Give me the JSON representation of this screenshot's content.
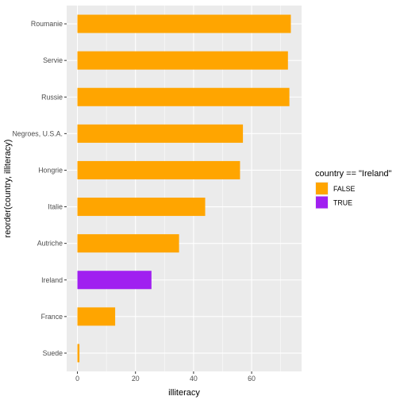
{
  "chart_data": {
    "type": "bar",
    "orientation": "horizontal",
    "categories": [
      "Suede",
      "France",
      "Ireland",
      "Autriche",
      "Italie",
      "Hongrie",
      "Negroes, U.S.A.",
      "Russie",
      "Servie",
      "Roumanie"
    ],
    "values": [
      0.7,
      13,
      25.5,
      35,
      44,
      56,
      57,
      73,
      72.5,
      73.5
    ],
    "highlight": [
      false,
      false,
      true,
      false,
      false,
      false,
      false,
      false,
      false,
      false
    ],
    "xlabel": "illiteracy",
    "ylabel": "reorder(country, illiteracy)",
    "xticks": [
      0,
      20,
      40,
      60
    ],
    "xlim": [
      -3.7,
      77.2
    ],
    "grid": true,
    "legend": {
      "title": "country == \"Ireland\"",
      "position": "right",
      "entries": [
        {
          "label": "FALSE",
          "color": "#FFA500"
        },
        {
          "label": "TRUE",
          "color": "#A020F0"
        }
      ]
    },
    "colors": {
      "panel": "#EBEBEB",
      "grid": "#FFFFFF",
      "false": "#FFA500",
      "true": "#A020F0"
    }
  }
}
